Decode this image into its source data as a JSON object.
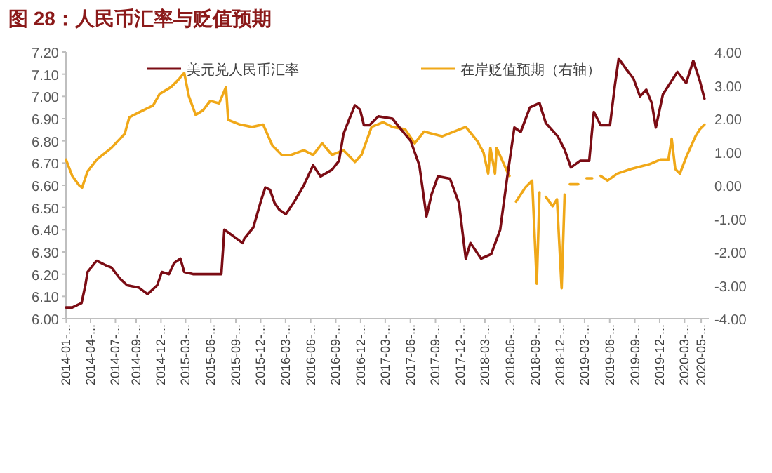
{
  "chart_data": {
    "type": "line",
    "title": "图 28：人民币汇率与贬值预期",
    "xlim": [
      "2014-01-01",
      "2020-06-12"
    ],
    "xticks": [
      {
        "value": "2014-01-02",
        "label": "2014-01-..."
      },
      {
        "value": "2014-04-01",
        "label": "2014-04-..."
      },
      {
        "value": "2014-07-01",
        "label": "2014-07-..."
      },
      {
        "value": "2014-09-15",
        "label": "2014-09-..."
      },
      {
        "value": "2014-12-15",
        "label": "2014-12-..."
      },
      {
        "value": "2015-03-15",
        "label": "2015-03-..."
      },
      {
        "value": "2015-06-15",
        "label": "2015-06-..."
      },
      {
        "value": "2015-09-15",
        "label": "2015-09-..."
      },
      {
        "value": "2015-12-15",
        "label": "2015-12-..."
      },
      {
        "value": "2016-03-15",
        "label": "2016-03-..."
      },
      {
        "value": "2016-06-15",
        "label": "2016-06-..."
      },
      {
        "value": "2016-09-15",
        "label": "2016-09-..."
      },
      {
        "value": "2016-12-15",
        "label": "2016-12-..."
      },
      {
        "value": "2017-03-15",
        "label": "2017-03-..."
      },
      {
        "value": "2017-06-15",
        "label": "2017-06-..."
      },
      {
        "value": "2017-09-15",
        "label": "2017-09-..."
      },
      {
        "value": "2017-12-15",
        "label": "2017-12-..."
      },
      {
        "value": "2018-03-15",
        "label": "2018-03-..."
      },
      {
        "value": "2018-06-15",
        "label": "2018-06-..."
      },
      {
        "value": "2018-09-15",
        "label": "2018-09-..."
      },
      {
        "value": "2018-12-15",
        "label": "2018-12-..."
      },
      {
        "value": "2019-03-15",
        "label": "2019-03-..."
      },
      {
        "value": "2019-06-15",
        "label": "2019-06-..."
      },
      {
        "value": "2019-09-15",
        "label": "2019-09-..."
      },
      {
        "value": "2019-12-15",
        "label": "2019-12-..."
      },
      {
        "value": "2020-03-15",
        "label": "2020-03-..."
      },
      {
        "value": "2020-05-15",
        "label": "2020-05-..."
      }
    ],
    "ylim": [
      6.0,
      7.2
    ],
    "yticks": [
      {
        "value": 6.0,
        "label": "6.00"
      },
      {
        "value": 6.1,
        "label": "6.10"
      },
      {
        "value": 6.2,
        "label": "6.20"
      },
      {
        "value": 6.3,
        "label": "6.30"
      },
      {
        "value": 6.4,
        "label": "6.40"
      },
      {
        "value": 6.5,
        "label": "6.50"
      },
      {
        "value": 6.6,
        "label": "6.60"
      },
      {
        "value": 6.7,
        "label": "6.70"
      },
      {
        "value": 6.8,
        "label": "6.80"
      },
      {
        "value": 6.9,
        "label": "6.90"
      },
      {
        "value": 7.0,
        "label": "7.00"
      },
      {
        "value": 7.1,
        "label": "7.10"
      },
      {
        "value": 7.2,
        "label": "7.20"
      }
    ],
    "y2lim": [
      -4,
      4
    ],
    "y2ticks": [
      {
        "value": -4,
        "label": "-4.00"
      },
      {
        "value": -3,
        "label": "-3.00"
      },
      {
        "value": -2,
        "label": "-2.00"
      },
      {
        "value": -1,
        "label": "-1.00"
      },
      {
        "value": 0,
        "label": "0.00"
      },
      {
        "value": 1,
        "label": "1.00"
      },
      {
        "value": 2,
        "label": "2.00"
      },
      {
        "value": 3,
        "label": "3.00"
      },
      {
        "value": 4,
        "label": "4.00"
      }
    ],
    "legend": "top",
    "series": [
      {
        "name": "在岸贬值预期（右轴）",
        "color": "#f0a818",
        "axis": "y2",
        "x": [
          "2014-01-01",
          "2014-01-24",
          "2014-02-18",
          "2014-03-01",
          "2014-03-21",
          "2014-04-24",
          "2014-06-16",
          "2014-08-04",
          "2014-08-21",
          "2014-09-24",
          "2014-11-16",
          "2014-12-10",
          "2015-01-21",
          "2015-02-16",
          "2015-03-10",
          "2015-03-27",
          "2015-04-21",
          "2015-05-18",
          "2015-06-13",
          "2015-07-16",
          "2015-08-10",
          "2015-08-18",
          "2015-10-01",
          "2015-11-13",
          "2015-12-24",
          "2016-01-27",
          "2016-03-01",
          "2016-04-04",
          "2016-05-21",
          "2016-06-24",
          "2016-07-27",
          "2016-09-01",
          "2016-10-13",
          "2016-11-24",
          "2016-12-18",
          "2017-01-24",
          "2017-03-07",
          "2017-04-10",
          "2017-05-27",
          "2017-07-01",
          "2017-08-04",
          "2017-10-10",
          "2018-01-04",
          "2018-02-15",
          "2018-03-10",
          "2018-03-27",
          "2018-04-04",
          "2018-04-21",
          "2018-04-27",
          "2018-06-04",
          "2018-06-13",
          "2018-06-24",
          "2018-07-07",
          "2018-08-10",
          "2018-09-04",
          "2018-09-21",
          "2018-10-01",
          "2018-10-13",
          "2018-10-24",
          "2018-11-18",
          "2018-12-04",
          "2018-12-21",
          "2019-01-01",
          "2019-01-12",
          "2019-01-20",
          "2019-02-20",
          "2019-03-01",
          "2019-03-22",
          "2019-04-12",
          "2019-04-20",
          "2019-05-13",
          "2019-06-07",
          "2019-07-13",
          "2019-09-01",
          "2019-11-07",
          "2019-12-18",
          "2020-01-16",
          "2020-01-28",
          "2020-02-10",
          "2020-02-27",
          "2020-03-21",
          "2020-04-24",
          "2020-05-10",
          "2020-05-27"
        ],
        "values": [
          0.77,
          0.28,
          0.0,
          -0.07,
          0.42,
          0.77,
          1.12,
          1.54,
          2.04,
          2.18,
          2.39,
          2.74,
          2.95,
          3.16,
          3.37,
          2.67,
          2.11,
          2.25,
          2.53,
          2.46,
          2.95,
          1.96,
          1.82,
          1.75,
          1.82,
          1.19,
          0.91,
          0.91,
          1.05,
          0.91,
          1.26,
          0.91,
          1.05,
          0.7,
          0.91,
          1.75,
          1.89,
          1.75,
          1.68,
          1.26,
          1.61,
          1.47,
          1.75,
          1.33,
          0.98,
          0.35,
          1.12,
          0.35,
          1.12,
          0.42,
          0.28,
          null,
          -0.49,
          -0.07,
          0.14,
          -2.95,
          -0.21,
          null,
          -0.35,
          -0.63,
          -0.42,
          -3.09,
          -0.28,
          null,
          0.03,
          0.03,
          null,
          0.21,
          0.21,
          null,
          0.28,
          0.14,
          0.35,
          0.49,
          0.63,
          0.77,
          0.77,
          1.4,
          0.49,
          0.35,
          0.84,
          1.47,
          1.68,
          1.82
        ]
      },
      {
        "name": "美元兑人民币汇率",
        "color": "#7b0c14",
        "x": [
          "2014-01-01",
          "2014-01-24",
          "2014-02-27",
          "2014-03-13",
          "2014-03-21",
          "2014-04-16",
          "2014-04-24",
          "2014-05-27",
          "2014-06-16",
          "2014-07-18",
          "2014-08-13",
          "2014-09-24",
          "2014-10-27",
          "2014-12-01",
          "2014-12-18",
          "2015-01-13",
          "2015-02-01",
          "2015-02-24",
          "2015-03-10",
          "2015-04-13",
          "2015-07-24",
          "2015-08-04",
          "2015-08-27",
          "2015-10-10",
          "2015-10-16",
          "2015-11-18",
          "2015-12-16",
          "2016-01-01",
          "2016-01-18",
          "2016-02-04",
          "2016-02-21",
          "2016-03-16",
          "2016-04-18",
          "2016-05-21",
          "2016-06-24",
          "2016-07-21",
          "2016-09-01",
          "2016-09-27",
          "2016-10-13",
          "2016-11-01",
          "2016-11-24",
          "2016-12-13",
          "2016-12-27",
          "2017-01-16",
          "2017-02-18",
          "2017-04-10",
          "2017-05-13",
          "2017-06-16",
          "2017-07-18",
          "2017-08-13",
          "2017-09-01",
          "2017-09-24",
          "2017-11-07",
          "2017-12-10",
          "2018-01-04",
          "2018-01-21",
          "2018-03-01",
          "2018-04-07",
          "2018-05-10",
          "2018-06-04",
          "2018-07-01",
          "2018-07-24",
          "2018-08-27",
          "2018-10-01",
          "2018-10-24",
          "2018-12-07",
          "2019-01-01",
          "2019-01-24",
          "2019-02-27",
          "2019-04-01",
          "2019-04-18",
          "2019-05-13",
          "2019-06-16",
          "2019-07-04",
          "2019-07-18",
          "2019-08-16",
          "2019-09-10",
          "2019-10-04",
          "2019-10-27",
          "2019-11-16",
          "2019-12-01",
          "2019-12-27",
          "2020-02-18",
          "2020-03-21",
          "2020-04-16",
          "2020-05-10",
          "2020-05-27"
        ],
        "values": [
          6.05,
          6.05,
          6.07,
          6.15,
          6.21,
          6.25,
          6.26,
          6.24,
          6.23,
          6.18,
          6.15,
          6.14,
          6.11,
          6.15,
          6.21,
          6.2,
          6.25,
          6.27,
          6.21,
          6.2,
          6.2,
          6.4,
          6.38,
          6.34,
          6.36,
          6.41,
          6.53,
          6.59,
          6.58,
          6.52,
          6.49,
          6.47,
          6.53,
          6.6,
          6.69,
          6.64,
          6.67,
          6.71,
          6.83,
          6.89,
          6.96,
          6.94,
          6.87,
          6.87,
          6.91,
          6.9,
          6.85,
          6.8,
          6.69,
          6.46,
          6.56,
          6.64,
          6.63,
          6.52,
          6.27,
          6.34,
          6.27,
          6.29,
          6.4,
          6.63,
          6.86,
          6.84,
          6.95,
          6.97,
          6.88,
          6.82,
          6.76,
          6.68,
          6.71,
          6.71,
          6.93,
          6.87,
          6.87,
          7.05,
          7.17,
          7.12,
          7.08,
          7.0,
          7.03,
          6.97,
          6.86,
          7.01,
          7.11,
          7.06,
          7.16,
          7.07,
          6.99
        ]
      }
    ]
  }
}
